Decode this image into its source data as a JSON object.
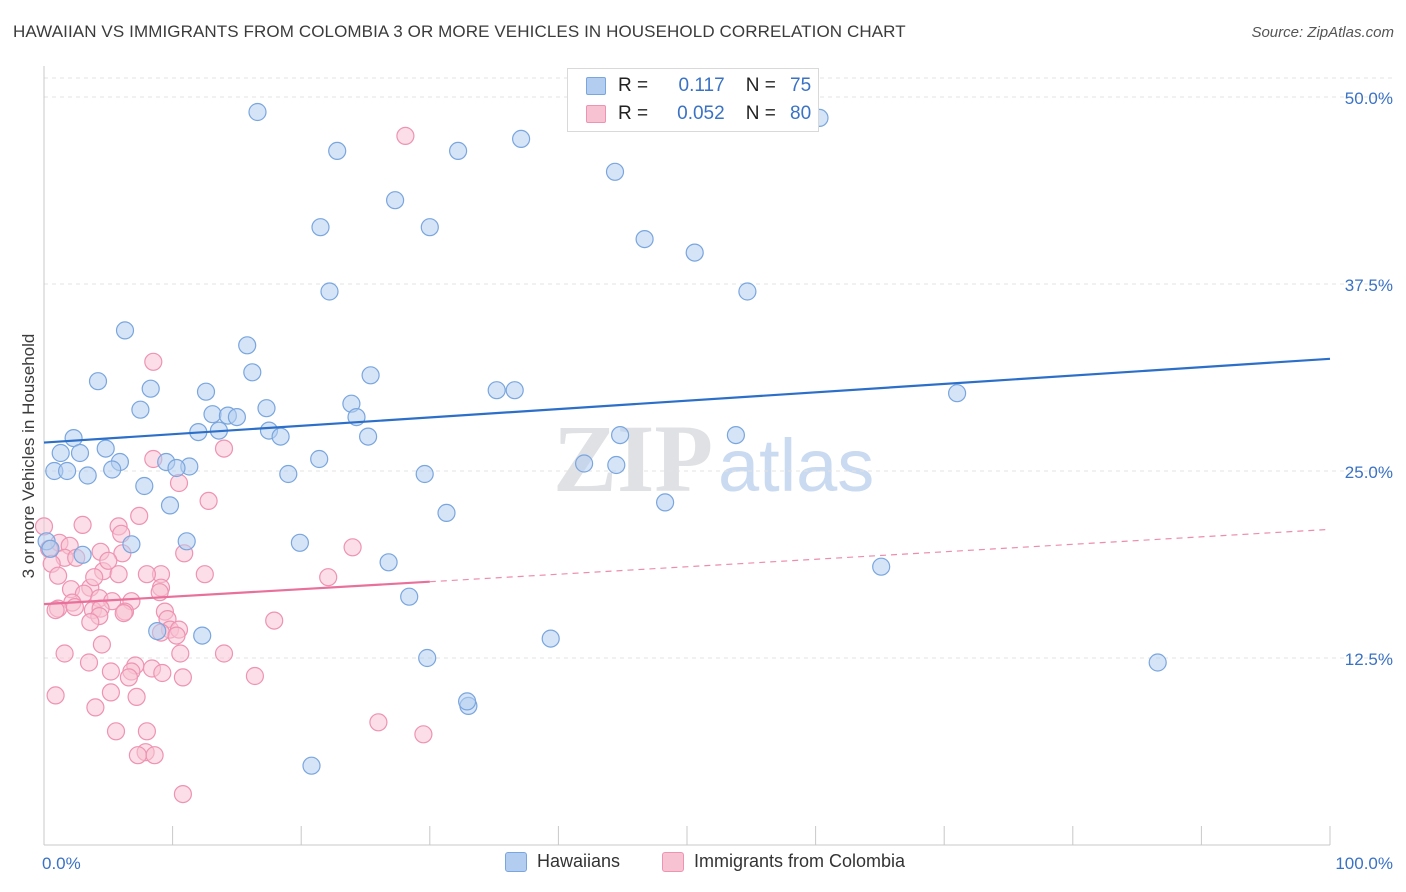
{
  "header": {
    "title": "HAWAIIAN VS IMMIGRANTS FROM COLOMBIA 3 OR MORE VEHICLES IN HOUSEHOLD CORRELATION CHART",
    "source_label": "Source: ZipAtlas.com"
  },
  "watermark": {
    "zip": "ZIP",
    "atlas": "atlas"
  },
  "legend_top": {
    "rows": [
      {
        "r_label": "R =",
        "r_value": "0.117",
        "n_label": "N =",
        "n_value": "75"
      },
      {
        "r_label": "R =",
        "r_value": "0.052",
        "n_label": "N =",
        "n_value": "80"
      }
    ]
  },
  "legend_bottom": {
    "items": [
      {
        "label": "Hawaiians"
      },
      {
        "label": "Immigrants from Colombia"
      }
    ]
  },
  "colors": {
    "blue_fill": "#b3cdf0",
    "blue_stroke": "#7aa6de",
    "blue_line": "#2c6fc9",
    "pink_fill": "#f7c3d3",
    "pink_stroke": "#ee93b1",
    "pink_line": "#e8709a",
    "grid": "#e3e3e3",
    "tick_text": "#3a72c4"
  },
  "chart_data": {
    "type": "scatter",
    "title": "HAWAIIAN VS IMMIGRANTS FROM COLOMBIA 3 OR MORE VEHICLES IN HOUSEHOLD CORRELATION CHART",
    "xlabel": "",
    "ylabel": "3 or more Vehicles in Household",
    "xlim": [
      0,
      100
    ],
    "ylim": [
      0,
      50
    ],
    "x_tick_labels": [
      "0.0%",
      "100.0%"
    ],
    "y_ticks": [
      12.5,
      25.0,
      37.5,
      50.0
    ],
    "y_tick_labels": [
      "12.5%",
      "25.0%",
      "37.5%",
      "50.0%"
    ],
    "grid": true,
    "series": [
      {
        "name": "Hawaiians",
        "r": 0.117,
        "n": 75,
        "trend": {
          "x": [
            0,
            100
          ],
          "y": [
            26.9,
            32.5
          ],
          "dashed_from": null
        },
        "points": [
          [
            16.6,
            49.0
          ],
          [
            22.8,
            46.4
          ],
          [
            32.2,
            46.4
          ],
          [
            37.1,
            47.2
          ],
          [
            60.3,
            48.6
          ],
          [
            27.3,
            43.1
          ],
          [
            44.4,
            45.0
          ],
          [
            21.5,
            41.3
          ],
          [
            30.0,
            41.3
          ],
          [
            46.7,
            40.5
          ],
          [
            50.6,
            39.6
          ],
          [
            22.2,
            37.0
          ],
          [
            54.7,
            37.0
          ],
          [
            6.3,
            34.4
          ],
          [
            15.8,
            33.4
          ],
          [
            16.2,
            31.6
          ],
          [
            25.4,
            31.4
          ],
          [
            4.2,
            31.0
          ],
          [
            8.3,
            30.5
          ],
          [
            12.6,
            30.3
          ],
          [
            35.2,
            30.4
          ],
          [
            36.6,
            30.4
          ],
          [
            17.3,
            29.2
          ],
          [
            23.9,
            29.5
          ],
          [
            7.5,
            29.1
          ],
          [
            13.1,
            28.8
          ],
          [
            14.3,
            28.7
          ],
          [
            15.0,
            28.6
          ],
          [
            24.3,
            28.6
          ],
          [
            12.0,
            27.6
          ],
          [
            13.6,
            27.7
          ],
          [
            17.5,
            27.7
          ],
          [
            18.4,
            27.3
          ],
          [
            25.2,
            27.3
          ],
          [
            44.8,
            27.4
          ],
          [
            53.8,
            27.4
          ],
          [
            71.0,
            30.2
          ],
          [
            2.3,
            27.2
          ],
          [
            4.8,
            26.5
          ],
          [
            1.3,
            26.2
          ],
          [
            2.8,
            26.2
          ],
          [
            5.9,
            25.6
          ],
          [
            9.5,
            25.6
          ],
          [
            11.3,
            25.3
          ],
          [
            10.3,
            25.2
          ],
          [
            0.8,
            25.0
          ],
          [
            1.8,
            25.0
          ],
          [
            3.4,
            24.7
          ],
          [
            5.3,
            25.1
          ],
          [
            19.0,
            24.8
          ],
          [
            21.4,
            25.8
          ],
          [
            29.6,
            24.8
          ],
          [
            42.0,
            25.5
          ],
          [
            44.5,
            25.4
          ],
          [
            7.8,
            24.0
          ],
          [
            9.8,
            22.7
          ],
          [
            31.3,
            22.2
          ],
          [
            48.3,
            22.9
          ],
          [
            0.2,
            20.3
          ],
          [
            0.5,
            19.8
          ],
          [
            6.8,
            20.1
          ],
          [
            11.1,
            20.3
          ],
          [
            19.9,
            20.2
          ],
          [
            26.8,
            18.9
          ],
          [
            65.1,
            18.6
          ],
          [
            28.4,
            16.6
          ],
          [
            8.8,
            14.3
          ],
          [
            39.4,
            13.8
          ],
          [
            29.8,
            12.5
          ],
          [
            33.0,
            9.3
          ],
          [
            86.6,
            12.2
          ],
          [
            20.8,
            5.3
          ],
          [
            32.9,
            9.6
          ],
          [
            12.3,
            14.0
          ],
          [
            3.0,
            19.4
          ]
        ]
      },
      {
        "name": "Immigrants from Colombia",
        "r": 0.052,
        "n": 80,
        "trend": {
          "x": [
            0,
            30,
            100
          ],
          "y": [
            16.1,
            17.6,
            21.1
          ],
          "dashed_from": 30
        },
        "points": [
          [
            28.1,
            47.4
          ],
          [
            8.5,
            32.3
          ],
          [
            8.5,
            25.8
          ],
          [
            14.0,
            26.5
          ],
          [
            10.5,
            24.2
          ],
          [
            12.8,
            23.0
          ],
          [
            7.4,
            22.0
          ],
          [
            3.0,
            21.4
          ],
          [
            5.8,
            21.3
          ],
          [
            0.0,
            21.3
          ],
          [
            1.2,
            20.2
          ],
          [
            2.0,
            20.0
          ],
          [
            0.4,
            19.8
          ],
          [
            1.6,
            19.2
          ],
          [
            2.5,
            19.2
          ],
          [
            4.4,
            19.6
          ],
          [
            6.1,
            19.5
          ],
          [
            10.9,
            19.5
          ],
          [
            24.0,
            19.9
          ],
          [
            0.6,
            18.8
          ],
          [
            1.1,
            18.0
          ],
          [
            4.6,
            18.3
          ],
          [
            5.8,
            18.1
          ],
          [
            9.1,
            18.1
          ],
          [
            12.5,
            18.1
          ],
          [
            22.1,
            17.9
          ],
          [
            2.1,
            17.1
          ],
          [
            3.6,
            17.2
          ],
          [
            9.1,
            17.2
          ],
          [
            3.1,
            16.8
          ],
          [
            4.3,
            16.5
          ],
          [
            5.3,
            16.3
          ],
          [
            6.8,
            16.3
          ],
          [
            2.2,
            16.2
          ],
          [
            1.1,
            15.8
          ],
          [
            0.9,
            15.7
          ],
          [
            3.8,
            15.7
          ],
          [
            4.4,
            15.8
          ],
          [
            6.3,
            15.6
          ],
          [
            9.4,
            15.6
          ],
          [
            4.3,
            15.3
          ],
          [
            9.6,
            15.1
          ],
          [
            17.9,
            15.0
          ],
          [
            9.8,
            14.4
          ],
          [
            10.5,
            14.4
          ],
          [
            9.1,
            14.2
          ],
          [
            4.5,
            13.4
          ],
          [
            1.6,
            12.8
          ],
          [
            10.6,
            12.8
          ],
          [
            14.0,
            12.8
          ],
          [
            3.5,
            12.2
          ],
          [
            7.1,
            12.0
          ],
          [
            8.4,
            11.8
          ],
          [
            5.2,
            11.6
          ],
          [
            6.8,
            11.6
          ],
          [
            9.2,
            11.5
          ],
          [
            6.6,
            11.2
          ],
          [
            10.8,
            11.2
          ],
          [
            16.4,
            11.3
          ],
          [
            5.2,
            10.2
          ],
          [
            7.2,
            9.9
          ],
          [
            0.9,
            10.0
          ],
          [
            26.0,
            8.2
          ],
          [
            29.5,
            7.4
          ],
          [
            5.6,
            7.6
          ],
          [
            8.0,
            7.6
          ],
          [
            7.9,
            6.2
          ],
          [
            7.3,
            6.0
          ],
          [
            8.6,
            6.0
          ],
          [
            10.8,
            3.4
          ],
          [
            4.0,
            9.2
          ],
          [
            6.2,
            15.5
          ],
          [
            5.0,
            19.0
          ],
          [
            8.0,
            18.1
          ],
          [
            10.3,
            14.0
          ],
          [
            2.4,
            15.9
          ],
          [
            3.6,
            14.9
          ],
          [
            6.0,
            20.8
          ],
          [
            3.9,
            17.9
          ],
          [
            9.0,
            16.9
          ]
        ]
      }
    ]
  }
}
